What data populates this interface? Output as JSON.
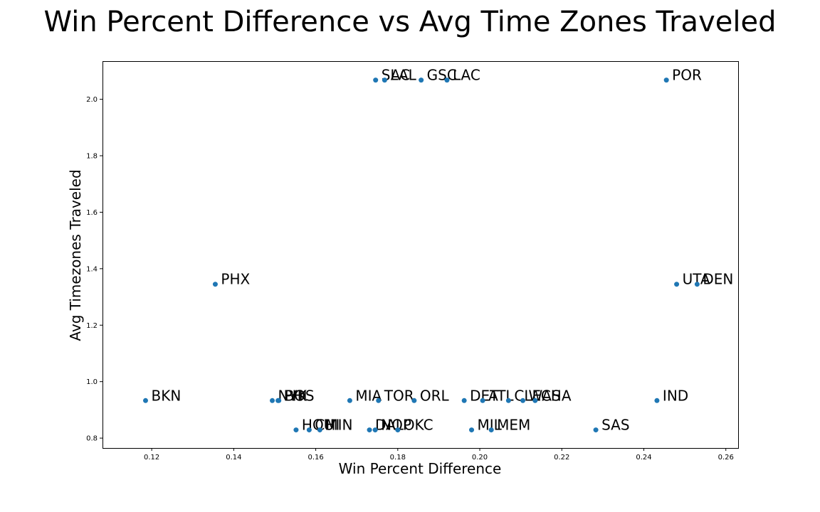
{
  "chart_data": {
    "type": "scatter",
    "title": "Win Percent Difference vs Avg Time Zones Traveled",
    "xlabel": "Win Percent Difference",
    "ylabel": "Avg Timezones Traveled",
    "xlim": [
      0.108,
      0.263
    ],
    "ylim": [
      0.765,
      2.135
    ],
    "xticks": [
      "0.12",
      "0.14",
      "0.16",
      "0.18",
      "0.20",
      "0.22",
      "0.24",
      "0.26"
    ],
    "yticks": [
      "0.8",
      "1.0",
      "1.2",
      "1.4",
      "1.6",
      "1.8",
      "2.0"
    ],
    "grid": false,
    "marker_color": "#1f77b4",
    "points": [
      {
        "label": "BKN",
        "x": 0.1185,
        "y": 0.933
      },
      {
        "label": "PHX",
        "x": 0.1355,
        "y": 1.345
      },
      {
        "label": "NYK",
        "x": 0.1494,
        "y": 0.933
      },
      {
        "label": "PHI",
        "x": 0.1508,
        "y": 0.933
      },
      {
        "label": "BOS",
        "x": 0.151,
        "y": 0.933
      },
      {
        "label": "HOU",
        "x": 0.1552,
        "y": 0.829
      },
      {
        "label": "CHI",
        "x": 0.1584,
        "y": 0.829
      },
      {
        "label": "MIN",
        "x": 0.161,
        "y": 0.829
      },
      {
        "label": "MIA",
        "x": 0.1683,
        "y": 0.933
      },
      {
        "label": "DAL",
        "x": 0.1731,
        "y": 0.829
      },
      {
        "label": "NOP",
        "x": 0.1745,
        "y": 0.829
      },
      {
        "label": "SAC",
        "x": 0.1746,
        "y": 2.068
      },
      {
        "label": "TOR",
        "x": 0.1753,
        "y": 0.933
      },
      {
        "label": "LAL",
        "x": 0.1768,
        "y": 2.068
      },
      {
        "label": "OKC",
        "x": 0.18,
        "y": 0.829
      },
      {
        "label": "ORL",
        "x": 0.184,
        "y": 0.933
      },
      {
        "label": "GSC",
        "x": 0.1857,
        "y": 2.068
      },
      {
        "label": "LAC",
        "x": 0.192,
        "y": 2.068
      },
      {
        "label": "DET",
        "x": 0.1962,
        "y": 0.933
      },
      {
        "label": "MIL",
        "x": 0.198,
        "y": 0.829
      },
      {
        "label": "ATL",
        "x": 0.2007,
        "y": 0.933
      },
      {
        "label": "MEM",
        "x": 0.2028,
        "y": 0.829
      },
      {
        "label": "CLE",
        "x": 0.207,
        "y": 0.933
      },
      {
        "label": "WAS",
        "x": 0.2105,
        "y": 0.933
      },
      {
        "label": "CHA",
        "x": 0.2135,
        "y": 0.933
      },
      {
        "label": "SAS",
        "x": 0.2283,
        "y": 0.829
      },
      {
        "label": "IND",
        "x": 0.2432,
        "y": 0.933
      },
      {
        "label": "POR",
        "x": 0.2455,
        "y": 2.068
      },
      {
        "label": "UTA",
        "x": 0.248,
        "y": 1.345
      },
      {
        "label": "DEN",
        "x": 0.253,
        "y": 1.345
      }
    ]
  }
}
